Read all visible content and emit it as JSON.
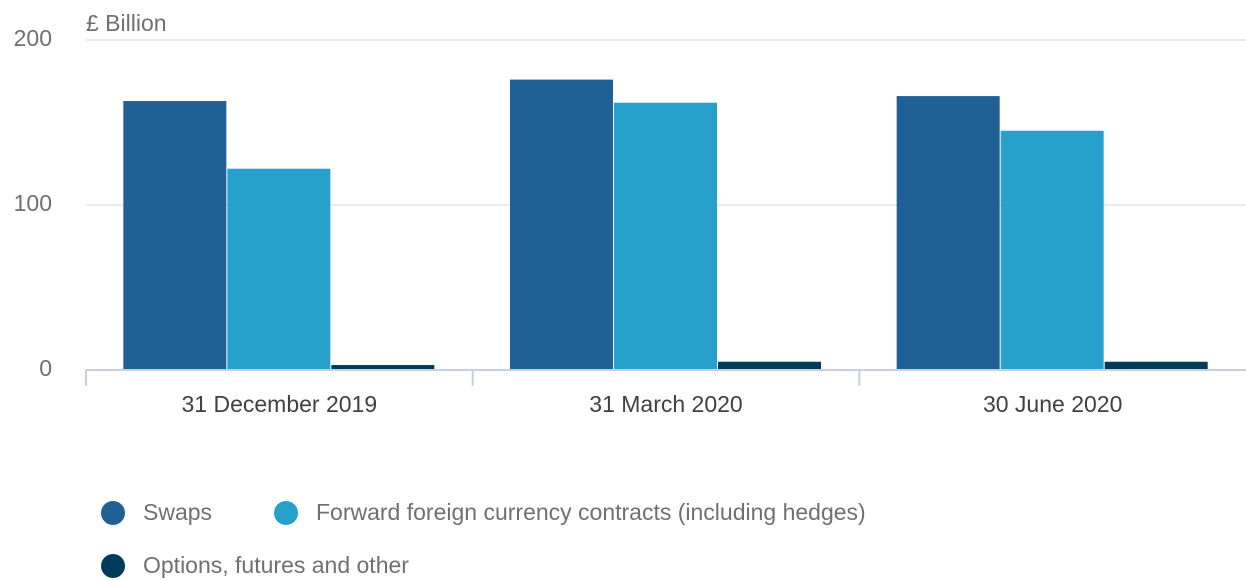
{
  "chart_data": {
    "type": "bar",
    "y_label": "£ Billion",
    "categories": [
      "31 December 2019",
      "31 March 2020",
      "30 June 2020"
    ],
    "series": [
      {
        "name": "Swaps",
        "color": "#206095",
        "values": [
          163,
          176,
          166
        ]
      },
      {
        "name": "Forward foreign currency contracts (including hedges)",
        "color": "#27a0cc",
        "values": [
          122,
          162,
          145
        ]
      },
      {
        "name": "Options, futures and other",
        "color": "#003c57",
        "values": [
          3,
          5,
          5
        ]
      }
    ],
    "ylim": [
      0,
      200
    ],
    "yticks": [
      0,
      100,
      200
    ],
    "grid": true
  }
}
